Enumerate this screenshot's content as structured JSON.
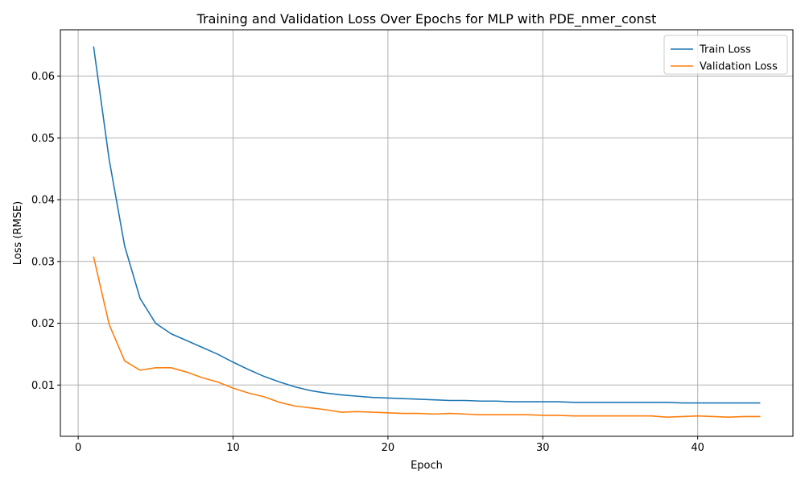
{
  "chart_data": {
    "type": "line",
    "title": "Training and Validation Loss Over Epochs for MLP with PDE_nmer_const",
    "xlabel": "Epoch",
    "ylabel": "Loss (RMSE)",
    "xlim": [
      -1.15,
      46.15
    ],
    "ylim": [
      0.0017,
      0.0675
    ],
    "xticks": [
      0,
      10,
      20,
      30,
      40
    ],
    "yticks": [
      0.01,
      0.02,
      0.03,
      0.04,
      0.05,
      0.06
    ],
    "ytick_labels": [
      "0.01",
      "0.02",
      "0.03",
      "0.04",
      "0.05",
      "0.06"
    ],
    "xtick_labels": [
      "0",
      "10",
      "20",
      "30",
      "40"
    ],
    "grid": true,
    "legend_position": "top-right",
    "x": [
      1,
      2,
      3,
      4,
      5,
      6,
      7,
      8,
      9,
      10,
      11,
      12,
      13,
      14,
      15,
      16,
      17,
      18,
      19,
      20,
      21,
      22,
      23,
      24,
      25,
      26,
      27,
      28,
      29,
      30,
      31,
      32,
      33,
      34,
      35,
      36,
      37,
      38,
      39,
      40,
      41,
      42,
      43,
      44
    ],
    "series": [
      {
        "name": "Train Loss",
        "color": "#1f77b4",
        "values": [
          0.0647,
          0.0465,
          0.0325,
          0.024,
          0.02,
          0.0183,
          0.0172,
          0.0161,
          0.015,
          0.0137,
          0.0125,
          0.0114,
          0.0105,
          0.0097,
          0.0091,
          0.0087,
          0.0084,
          0.0082,
          0.008,
          0.0079,
          0.0078,
          0.0077,
          0.0076,
          0.0075,
          0.0075,
          0.0074,
          0.0074,
          0.0073,
          0.0073,
          0.0073,
          0.0073,
          0.0072,
          0.0072,
          0.0072,
          0.0072,
          0.0072,
          0.0072,
          0.0072,
          0.0071,
          0.0071,
          0.0071,
          0.0071,
          0.0071,
          0.0071
        ]
      },
      {
        "name": "Validation Loss",
        "color": "#ff7f0e",
        "values": [
          0.0307,
          0.0198,
          0.0139,
          0.0124,
          0.0128,
          0.0128,
          0.0121,
          0.0112,
          0.0105,
          0.0095,
          0.0087,
          0.0081,
          0.0072,
          0.0066,
          0.0063,
          0.006,
          0.0056,
          0.0057,
          0.0056,
          0.0055,
          0.0054,
          0.0054,
          0.0053,
          0.0054,
          0.0053,
          0.0052,
          0.0052,
          0.0052,
          0.0052,
          0.0051,
          0.0051,
          0.005,
          0.005,
          0.005,
          0.005,
          0.005,
          0.005,
          0.0048,
          0.0049,
          0.005,
          0.0049,
          0.0048,
          0.0049,
          0.0049
        ]
      }
    ]
  }
}
